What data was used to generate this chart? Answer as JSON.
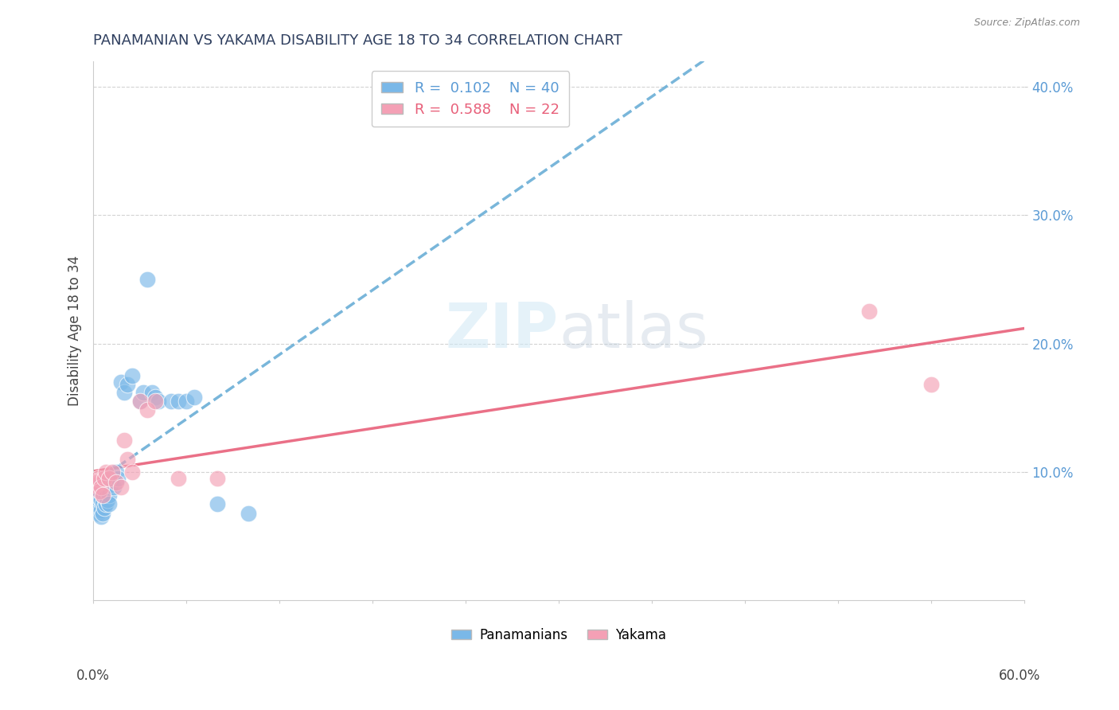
{
  "title": "PANAMANIAN VS YAKAMA DISABILITY AGE 18 TO 34 CORRELATION CHART",
  "source": "Source: ZipAtlas.com",
  "ylabel": "Disability Age 18 to 34",
  "xlim": [
    0.0,
    0.6
  ],
  "ylim": [
    0.0,
    0.42
  ],
  "color_blue": "#7ab8e8",
  "color_pink": "#f4a0b5",
  "color_blue_line": "#6aaed6",
  "color_pink_line": "#e8607a",
  "watermark_color": "#d0e8f5",
  "blue_points_x": [
    0.001,
    0.002,
    0.002,
    0.003,
    0.003,
    0.004,
    0.004,
    0.005,
    0.005,
    0.005,
    0.006,
    0.006,
    0.007,
    0.007,
    0.008,
    0.008,
    0.009,
    0.01,
    0.01,
    0.011,
    0.012,
    0.013,
    0.015,
    0.016,
    0.018,
    0.02,
    0.022,
    0.025,
    0.03,
    0.032,
    0.035,
    0.038,
    0.04,
    0.042,
    0.05,
    0.055,
    0.06,
    0.065,
    0.08,
    0.1
  ],
  "blue_points_y": [
    0.075,
    0.082,
    0.072,
    0.078,
    0.068,
    0.08,
    0.07,
    0.078,
    0.07,
    0.065,
    0.076,
    0.068,
    0.08,
    0.072,
    0.08,
    0.075,
    0.078,
    0.082,
    0.075,
    0.09,
    0.095,
    0.088,
    0.1,
    0.095,
    0.17,
    0.162,
    0.168,
    0.175,
    0.155,
    0.162,
    0.25,
    0.162,
    0.158,
    0.155,
    0.155,
    0.155,
    0.155,
    0.158,
    0.075,
    0.068
  ],
  "pink_points_x": [
    0.001,
    0.002,
    0.003,
    0.004,
    0.005,
    0.006,
    0.007,
    0.008,
    0.01,
    0.012,
    0.015,
    0.018,
    0.02,
    0.022,
    0.025,
    0.03,
    0.035,
    0.04,
    0.055,
    0.08,
    0.5,
    0.54
  ],
  "pink_points_y": [
    0.09,
    0.092,
    0.095,
    0.085,
    0.088,
    0.082,
    0.095,
    0.1,
    0.095,
    0.1,
    0.092,
    0.088,
    0.125,
    0.11,
    0.1,
    0.155,
    0.148,
    0.155,
    0.095,
    0.095,
    0.225,
    0.168
  ]
}
